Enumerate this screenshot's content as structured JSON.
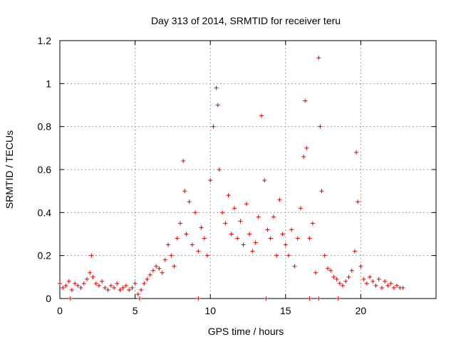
{
  "chart_data": {
    "type": "scatter",
    "title": "Day 313 of 2014, SRMTID for receiver teru",
    "xlabel": "GPS time / hours",
    "ylabel": "SRMTID / TECUs",
    "xlim": [
      0,
      25
    ],
    "ylim": [
      0,
      1.2
    ],
    "xticks": [
      0,
      5,
      10,
      15,
      20
    ],
    "xtick_labels": [
      "0",
      "5",
      "10",
      "15",
      "20"
    ],
    "yticks": [
      0,
      0.2,
      0.4,
      0.6,
      0.8,
      1.0,
      1.2
    ],
    "ytick_labels": [
      "0",
      "0.2",
      "0.4",
      "0.6",
      "0.8",
      "1",
      "1.2"
    ],
    "grid": true,
    "marker": "plus",
    "series": [
      {
        "name": "SRMTID",
        "color": "#e00000",
        "x": [
          0.0,
          0.2,
          0.4,
          0.6,
          0.8,
          1.0,
          1.2,
          1.4,
          1.6,
          1.8,
          2.0,
          2.1,
          2.2,
          2.4,
          2.6,
          2.8,
          3.0,
          3.2,
          3.4,
          3.6,
          3.8,
          4.0,
          4.2,
          4.4,
          4.6,
          4.8,
          5.0,
          5.2,
          5.4,
          5.6,
          5.8,
          6.0,
          6.2,
          6.4,
          6.6,
          6.8,
          7.0,
          7.2,
          7.4,
          7.6,
          7.8,
          8.0,
          8.2,
          8.3,
          8.4,
          8.6,
          8.8,
          9.0,
          9.2,
          9.4,
          9.6,
          9.8,
          10.0,
          10.2,
          10.4,
          10.5,
          10.6,
          10.8,
          11.0,
          11.2,
          11.4,
          11.6,
          11.8,
          12.0,
          12.2,
          12.4,
          12.6,
          12.8,
          13.0,
          13.2,
          13.4,
          13.6,
          13.8,
          14.0,
          14.2,
          14.4,
          14.6,
          14.8,
          15.0,
          15.2,
          15.4,
          15.6,
          15.8,
          16.0,
          16.2,
          16.3,
          16.4,
          16.6,
          16.8,
          17.0,
          17.2,
          17.3,
          17.4,
          17.6,
          17.8,
          18.0,
          18.2,
          18.4,
          18.6,
          18.8,
          19.0,
          19.2,
          19.4,
          19.6,
          19.7,
          19.8,
          20.0,
          20.2,
          20.4,
          20.6,
          20.8,
          21.0,
          21.2,
          21.4,
          21.6,
          21.8,
          22.0,
          22.2,
          22.4,
          22.6,
          22.8,
          0.7,
          5.3,
          9.2,
          13.7,
          16.6,
          17.2,
          18.5
        ],
        "y": [
          0.07,
          0.05,
          0.06,
          0.08,
          0.04,
          0.07,
          0.06,
          0.05,
          0.07,
          0.09,
          0.12,
          0.2,
          0.1,
          0.07,
          0.06,
          0.08,
          0.05,
          0.04,
          0.06,
          0.05,
          0.07,
          0.04,
          0.05,
          0.06,
          0.04,
          0.05,
          0.07,
          0.02,
          0.04,
          0.07,
          0.09,
          0.11,
          0.13,
          0.15,
          0.14,
          0.12,
          0.18,
          0.25,
          0.2,
          0.15,
          0.28,
          0.35,
          0.64,
          0.5,
          0.3,
          0.45,
          0.25,
          0.4,
          0.22,
          0.33,
          0.28,
          0.2,
          0.55,
          0.8,
          0.98,
          0.9,
          0.6,
          0.4,
          0.35,
          0.48,
          0.3,
          0.42,
          0.28,
          0.36,
          0.25,
          0.44,
          0.3,
          0.22,
          0.26,
          0.38,
          0.85,
          0.55,
          0.32,
          0.28,
          0.38,
          0.2,
          0.46,
          0.3,
          0.25,
          0.2,
          0.32,
          0.15,
          0.28,
          0.42,
          0.66,
          0.92,
          0.7,
          0.28,
          0.35,
          0.12,
          1.12,
          0.8,
          0.5,
          0.2,
          0.14,
          0.13,
          0.1,
          0.09,
          0.07,
          0.06,
          0.08,
          0.1,
          0.13,
          0.22,
          0.68,
          0.45,
          0.15,
          0.09,
          0.07,
          0.1,
          0.08,
          0.06,
          0.09,
          0.05,
          0.08,
          0.06,
          0.07,
          0.05,
          0.06,
          0.05,
          0.05,
          0.0,
          0.0,
          0.0,
          0.0,
          0.0,
          0.0,
          0.0
        ]
      }
    ]
  }
}
